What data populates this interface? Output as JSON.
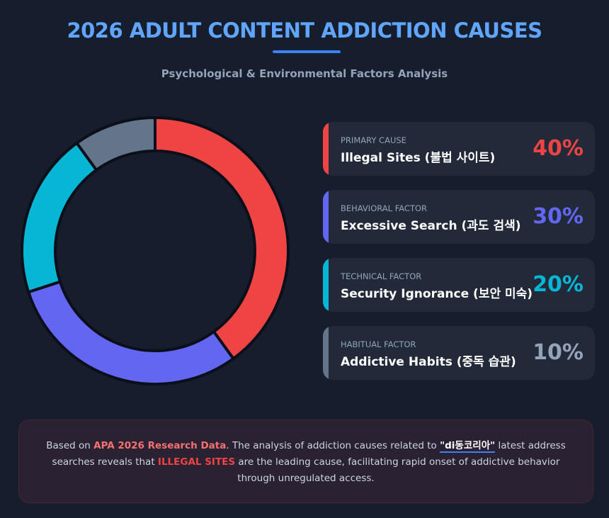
{
  "header": {
    "title": "2026 ADULT CONTENT ADDICTION CAUSES",
    "subtitle": "Psychological & Environmental Factors Analysis"
  },
  "chart_data": {
    "type": "pie",
    "variant": "donut",
    "categories": [
      "Illegal Sites (불법 사이트)",
      "Excessive Search (과도 검색)",
      "Security Ignorance (보안 미숙)",
      "Habitual Factor (중독 습관)"
    ],
    "values": [
      40,
      30,
      20,
      10
    ],
    "colors": [
      "#ef4444",
      "#6366f1",
      "#06b6d4",
      "#64748b"
    ],
    "legend": "right"
  },
  "cards": [
    {
      "category": "PRIMARY CAUSE",
      "name": "Illegal Sites (불법 사이트)",
      "percent": "40%",
      "color": "#ef4444"
    },
    {
      "category": "BEHAVIORAL FACTOR",
      "name": "Excessive Search (과도 검색)",
      "percent": "30%",
      "color": "#6366f1"
    },
    {
      "category": "TECHNICAL FACTOR",
      "name": "Security Ignorance (보안 미숙)",
      "percent": "20%",
      "color": "#06b6d4"
    },
    {
      "category": "HABITUAL FACTOR",
      "name": "Addictive Habits (중독 습관)",
      "percent": "10%",
      "color": "#94a3b8"
    }
  ],
  "note": {
    "t1": "Based on ",
    "hl1": "APA 2026 Research Data",
    "t2": ". The analysis of addiction causes related to ",
    "keyword": "\"di동코리아\"",
    "t3": " latest address searches reveals that ",
    "hl2": "ILLEGAL SITES",
    "t4": " are the leading cause, facilitating rapid onset of addictive behavior through unregulated access."
  }
}
